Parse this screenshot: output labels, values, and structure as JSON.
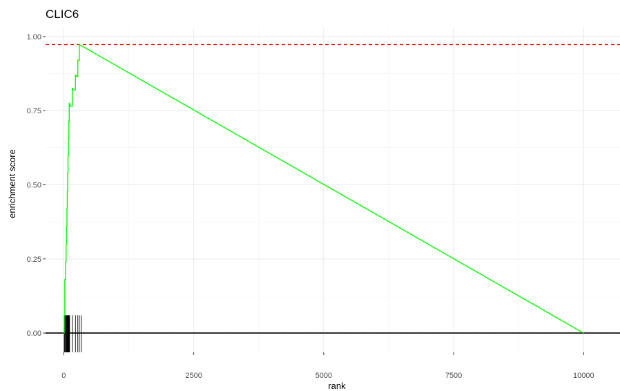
{
  "chart_data": {
    "type": "line",
    "title": "CLIC6",
    "xlabel": "rank",
    "ylabel": "enrichment score",
    "xlim": [
      -350,
      10700
    ],
    "ylim": [
      -0.065,
      1.03
    ],
    "x_ticks": [
      0,
      2500,
      5000,
      7500,
      10000
    ],
    "x_tick_labels": [
      "0",
      "2500",
      "5000",
      "7500",
      "10000"
    ],
    "y_ticks": [
      0.0,
      0.25,
      0.5,
      0.75,
      1.0
    ],
    "y_tick_labels": [
      "0.00",
      "0.25",
      "0.50",
      "0.75",
      "1.00"
    ],
    "grid": true,
    "series": [
      {
        "color": "#00ff00",
        "x": [
          0,
          8,
          8,
          20,
          20,
          35,
          35,
          45,
          45,
          55,
          55,
          62,
          62,
          68,
          68,
          75,
          75,
          82,
          82,
          90,
          90,
          98,
          98,
          105,
          105,
          112,
          112,
          125,
          125,
          165,
          165,
          175,
          175,
          225,
          225,
          240,
          240,
          270,
          270,
          300,
          300,
          10000
        ],
        "y": [
          0.0,
          0.0,
          0.06,
          0.06,
          0.18,
          0.18,
          0.24,
          0.24,
          0.3,
          0.3,
          0.36,
          0.36,
          0.42,
          0.42,
          0.48,
          0.48,
          0.54,
          0.54,
          0.6,
          0.6,
          0.655,
          0.655,
          0.715,
          0.715,
          0.775,
          0.775,
          0.77,
          0.77,
          0.765,
          0.765,
          0.825,
          0.825,
          0.82,
          0.82,
          0.87,
          0.87,
          0.865,
          0.865,
          0.92,
          0.92,
          0.973,
          0.0
        ]
      }
    ],
    "reference_lines": [
      {
        "axis": "y",
        "value": 0.973,
        "color": "#ff0000",
        "style": "dashed"
      },
      {
        "axis": "y",
        "value": 0.0,
        "color": "#ff0000",
        "style": "dashed"
      },
      {
        "axis": "y",
        "value": 0.0,
        "color": "#000000",
        "style": "solid"
      }
    ],
    "rug": {
      "color": "#000000",
      "y_range": [
        -0.065,
        0.06
      ],
      "positions": [
        8,
        20,
        35,
        45,
        55,
        62,
        68,
        75,
        82,
        90,
        98,
        105,
        112,
        165,
        225,
        270,
        300,
        335
      ]
    }
  }
}
